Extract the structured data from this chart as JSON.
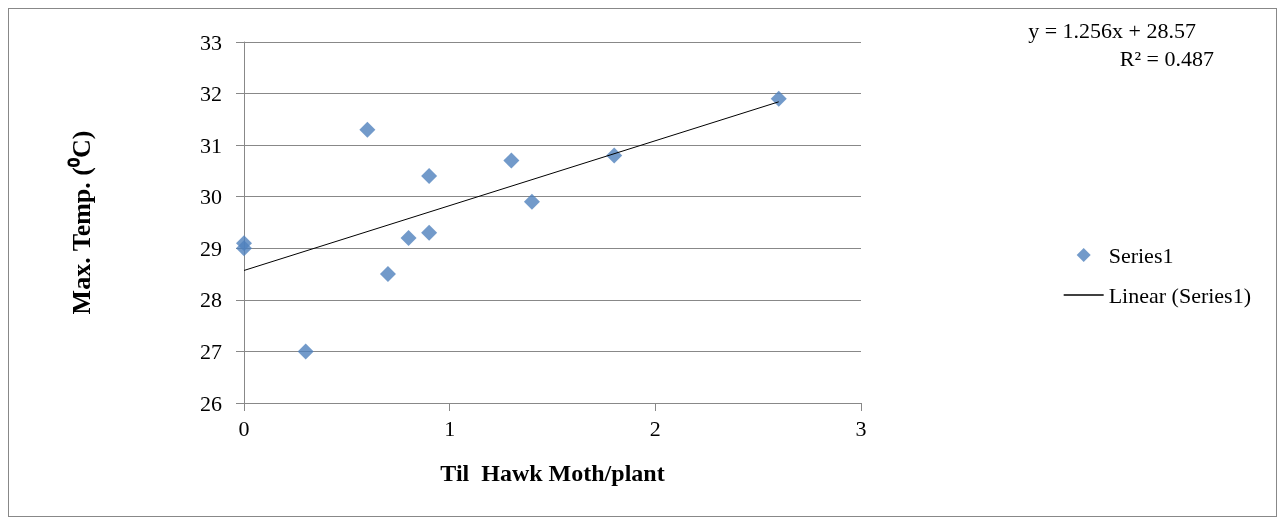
{
  "chart_data": {
    "type": "scatter",
    "xlabel": "Til  Hawk Moth/plant",
    "ylabel": "Max. Temp. (⁰C)",
    "annotations": [
      "y = 1.256x + 28.57",
      "R² = 0.487"
    ],
    "series": [
      {
        "name": "Series1",
        "marker": "diamond",
        "color": "#4f81bd",
        "x": [
          0,
          0,
          0.3,
          0.6,
          0.7,
          0.8,
          0.9,
          0.9,
          1.3,
          1.4,
          1.8,
          2.6
        ],
        "values": [
          29.1,
          29.0,
          27.0,
          31.3,
          28.5,
          29.2,
          30.4,
          29.3,
          30.7,
          29.9,
          30.8,
          31.9
        ]
      },
      {
        "name": "Linear (Series1)",
        "type": "line",
        "color": "#000000",
        "x": [
          0,
          2.6
        ],
        "values": [
          28.57,
          31.84
        ]
      }
    ],
    "xlim": [
      0,
      3
    ],
    "xticks": [
      0,
      1,
      2,
      3
    ],
    "ylim": [
      26,
      33
    ],
    "yticks": [
      26,
      27,
      28,
      29,
      30,
      31,
      32,
      33
    ],
    "grid": "y",
    "legend": "right"
  }
}
